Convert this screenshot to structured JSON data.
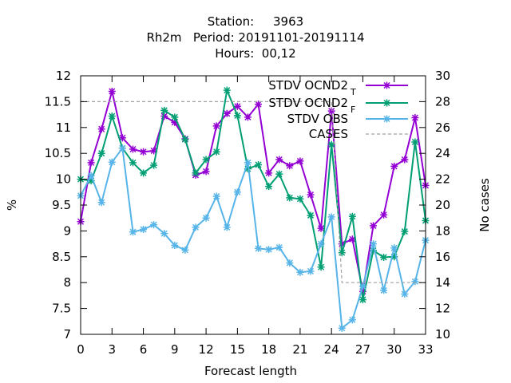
{
  "chart_data": {
    "type": "line",
    "title_lines": [
      "Station:     3963",
      "Rh2m   Period: 20191101-20191114",
      "Hours:  00,12"
    ],
    "xlabel": "Forecast length",
    "ylabel": "%",
    "y2label": "No cases",
    "xlim": [
      0,
      33
    ],
    "ylim": [
      7,
      12
    ],
    "y2lim": [
      10,
      30
    ],
    "xticks": [
      0,
      3,
      6,
      9,
      12,
      15,
      18,
      21,
      24,
      27,
      30,
      33
    ],
    "yticks": [
      7,
      7.5,
      8,
      8.5,
      9,
      9.5,
      10,
      10.5,
      11,
      11.5,
      12
    ],
    "ytick_labels": [
      "7",
      "7.5",
      "8",
      "8.5",
      "9",
      "9.5",
      "10",
      "10.5",
      "11",
      "11.5",
      "12"
    ],
    "y2ticks": [
      10,
      12,
      14,
      16,
      18,
      20,
      22,
      24,
      26,
      28,
      30
    ],
    "x": [
      0,
      1,
      2,
      3,
      4,
      5,
      6,
      7,
      8,
      9,
      10,
      11,
      12,
      13,
      14,
      15,
      16,
      17,
      18,
      19,
      20,
      21,
      22,
      23,
      24,
      25,
      26,
      27,
      28,
      29,
      30,
      31,
      32,
      33
    ],
    "series": [
      {
        "name": "STDV OCND2",
        "subscript": "T",
        "color": "#9400d3",
        "marker": "x",
        "axis": "y1",
        "values": [
          9.18,
          10.32,
          10.97,
          11.7,
          10.8,
          10.58,
          10.53,
          10.55,
          11.22,
          11.1,
          10.78,
          10.08,
          10.15,
          11.03,
          11.27,
          11.41,
          11.2,
          11.45,
          10.12,
          10.38,
          10.26,
          10.35,
          9.7,
          9.05,
          11.32,
          8.75,
          8.84,
          7.83,
          9.1,
          9.31,
          10.25,
          10.38,
          11.19,
          9.88
        ]
      },
      {
        "name": "STDV OCND2",
        "subscript": "F",
        "color": "#009e73",
        "marker": "x",
        "axis": "y1",
        "values": [
          10.0,
          9.97,
          10.5,
          11.22,
          10.6,
          10.32,
          10.12,
          10.27,
          11.33,
          11.2,
          10.77,
          10.12,
          10.38,
          10.53,
          11.72,
          11.23,
          10.2,
          10.28,
          9.86,
          10.1,
          9.64,
          9.62,
          9.3,
          8.3,
          10.67,
          8.58,
          9.28,
          7.67,
          8.62,
          8.49,
          8.5,
          8.99,
          10.72,
          9.2
        ]
      },
      {
        "name": "STDV OBS",
        "color": "#56b4e9",
        "marker": "x",
        "axis": "y1",
        "values": [
          9.68,
          10.07,
          9.55,
          10.33,
          10.6,
          8.98,
          9.03,
          9.12,
          8.95,
          8.72,
          8.63,
          9.07,
          9.25,
          9.67,
          9.07,
          9.75,
          10.32,
          8.66,
          8.64,
          8.68,
          8.38,
          8.2,
          8.22,
          8.75,
          9.27,
          7.12,
          7.28,
          7.93,
          8.75,
          7.85,
          8.67,
          7.78,
          8.02,
          8.82
        ]
      },
      {
        "name": "CASES",
        "color": "#a0a0a0",
        "style": "dashed",
        "axis": "y2",
        "values": [
          28,
          28,
          28,
          28,
          28,
          28,
          28,
          28,
          28,
          28,
          28,
          28,
          28,
          28,
          28,
          28,
          28,
          28,
          28,
          28,
          28,
          28,
          28,
          28,
          28,
          14,
          14,
          14,
          14,
          14,
          14,
          14,
          14,
          14
        ]
      }
    ],
    "legend_position": "top-right"
  }
}
